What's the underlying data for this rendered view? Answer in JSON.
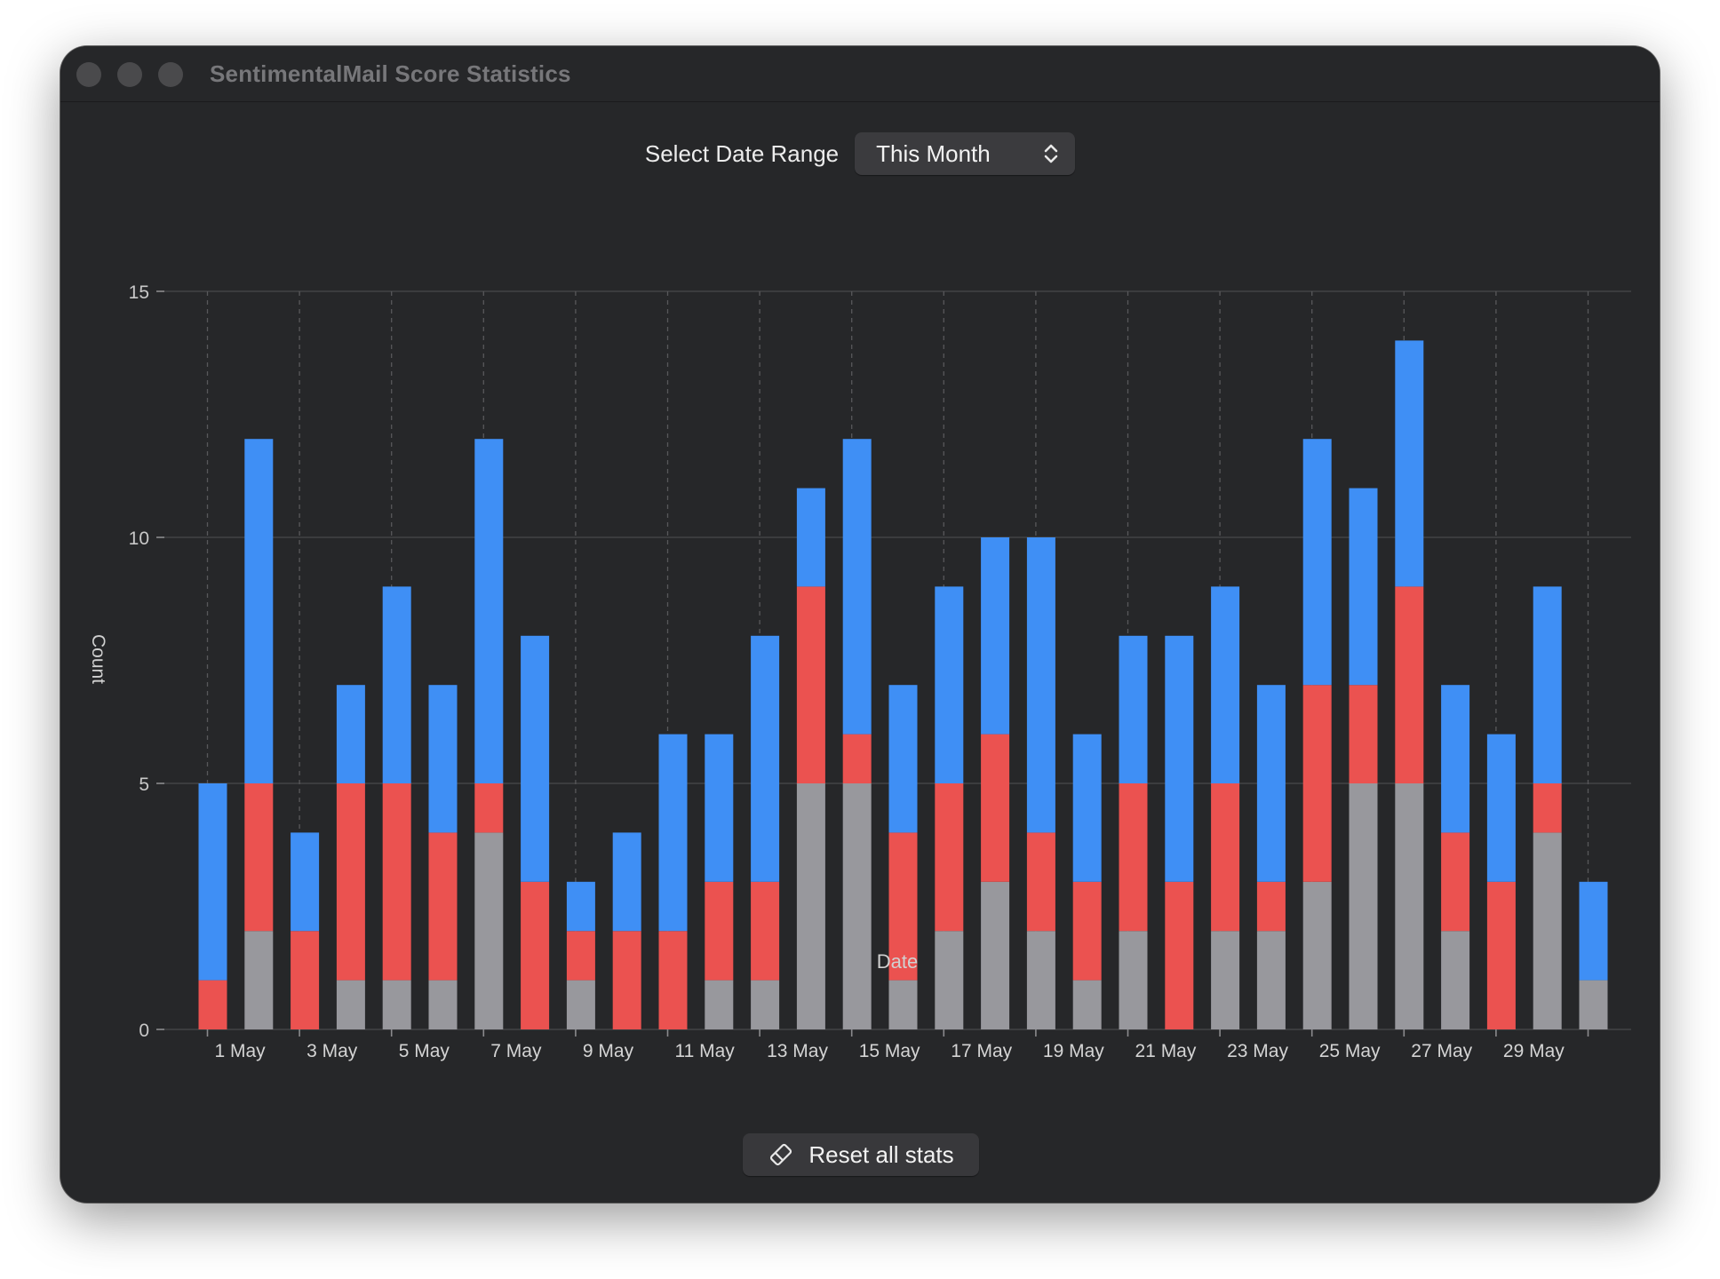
{
  "window": {
    "title": "SentimentalMail Score Statistics"
  },
  "controls": {
    "range_label": "Select Date Range",
    "range_value": "This Month",
    "reset_label": "Reset all stats",
    "reset_icon": "eraser-icon",
    "selector_icon": "up-down-chevron-icon"
  },
  "chart_data": {
    "type": "bar",
    "stacked": true,
    "xlabel": "Date",
    "ylabel": "Count",
    "ylim": [
      0,
      15
    ],
    "yticks": [
      0,
      5,
      10,
      15
    ],
    "grid": true,
    "categories": [
      "1 May",
      "2 May",
      "3 May",
      "4 May",
      "5 May",
      "6 May",
      "7 May",
      "8 May",
      "9 May",
      "10 May",
      "11 May",
      "12 May",
      "13 May",
      "14 May",
      "15 May",
      "16 May",
      "17 May",
      "18 May",
      "19 May",
      "20 May",
      "21 May",
      "22 May",
      "23 May",
      "24 May",
      "25 May",
      "26 May",
      "27 May",
      "28 May",
      "29 May",
      "30 May",
      "31 May"
    ],
    "x_tick_labels": [
      "1 May",
      "3 May",
      "5 May",
      "7 May",
      "9 May",
      "11 May",
      "13 May",
      "15 May",
      "17 May",
      "19 May",
      "21 May",
      "23 May",
      "25 May",
      "27 May",
      "29 May"
    ],
    "series": [
      {
        "color": "#98989d",
        "values": [
          0,
          2,
          0,
          1,
          1,
          1,
          4,
          0,
          1,
          0,
          0,
          1,
          1,
          5,
          5,
          1,
          2,
          3,
          2,
          1,
          2,
          0,
          2,
          2,
          3,
          5,
          5,
          2,
          0,
          4,
          1
        ]
      },
      {
        "color": "#eb5250",
        "values": [
          1,
          3,
          2,
          4,
          4,
          3,
          1,
          3,
          1,
          2,
          2,
          2,
          2,
          4,
          1,
          3,
          3,
          3,
          2,
          2,
          3,
          3,
          3,
          1,
          4,
          2,
          4,
          2,
          3,
          1,
          0
        ]
      },
      {
        "color": "#3f8ff5",
        "values": [
          4,
          7,
          2,
          2,
          4,
          3,
          7,
          5,
          1,
          2,
          4,
          3,
          5,
          2,
          6,
          3,
          4,
          4,
          6,
          3,
          3,
          5,
          4,
          4,
          5,
          4,
          5,
          3,
          3,
          4,
          2
        ]
      }
    ]
  }
}
